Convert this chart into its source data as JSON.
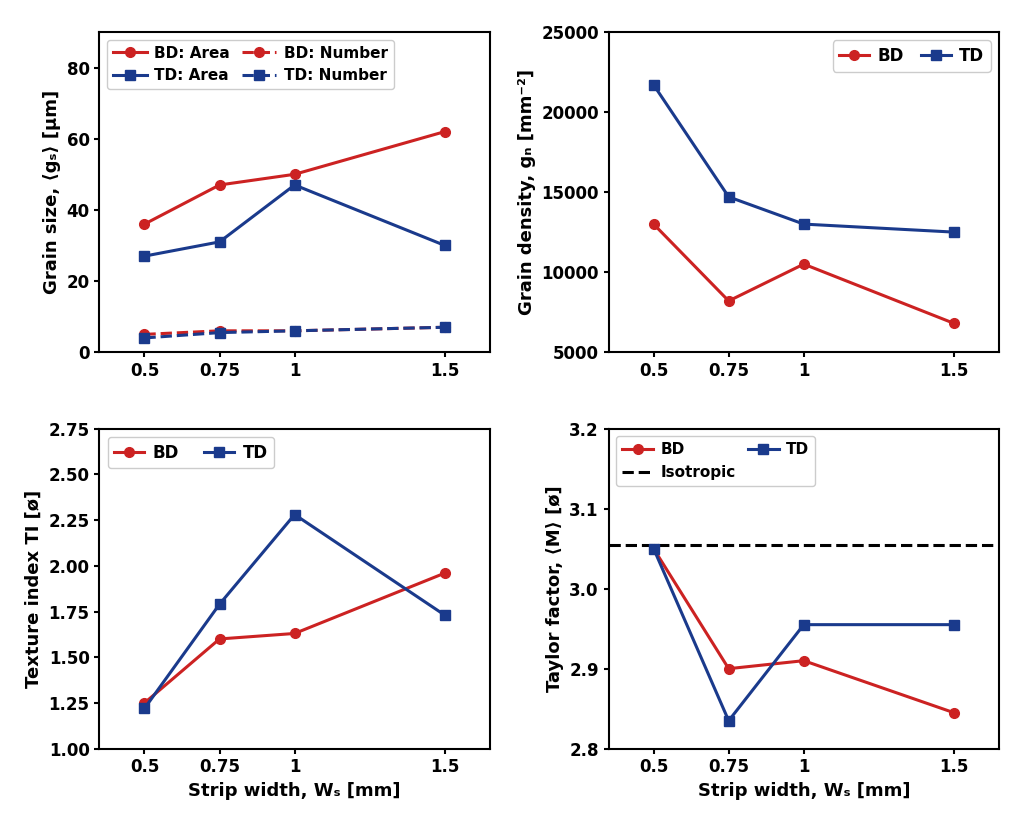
{
  "x": [
    0.5,
    0.75,
    1.0,
    1.5
  ],
  "grain_size": {
    "BD_area": [
      36,
      47,
      50,
      62
    ],
    "TD_area": [
      27,
      31,
      47,
      30
    ],
    "BD_number": [
      5,
      6,
      6,
      7
    ],
    "TD_number": [
      4,
      5.5,
      6,
      7
    ],
    "ylabel": "Grain size, ⟨gₛ⟩ [μm]",
    "ylim": [
      0,
      90
    ],
    "yticks": [
      0,
      20,
      40,
      60,
      80
    ]
  },
  "grain_density": {
    "BD": [
      13000,
      8200,
      10500,
      6800
    ],
    "TD": [
      21700,
      14700,
      13000,
      12500
    ],
    "ylabel": "Grain density, gₙ [mm⁻²]",
    "ylim": [
      5000,
      25000
    ],
    "yticks": [
      5000,
      10000,
      15000,
      20000,
      25000
    ]
  },
  "texture_index": {
    "BD": [
      1.25,
      1.6,
      1.63,
      1.96
    ],
    "TD": [
      1.22,
      1.79,
      2.28,
      1.73
    ],
    "ylabel": "Texture index TI [ø]",
    "ylim": [
      1.0,
      2.75
    ],
    "yticks": [
      1.0,
      1.25,
      1.5,
      1.75,
      2.0,
      2.25,
      2.5,
      2.75
    ]
  },
  "taylor_factor": {
    "BD": [
      3.05,
      2.9,
      2.91,
      2.845
    ],
    "TD": [
      3.05,
      2.835,
      2.955,
      2.955
    ],
    "isotropic": 3.055,
    "ylabel": "Taylor factor, ⟨M⟩ [ø]",
    "ylim": [
      2.8,
      3.2
    ],
    "yticks": [
      2.8,
      2.9,
      3.0,
      3.1,
      3.2
    ]
  },
  "xlabel": "Strip width, Wₛ [mm]",
  "xticks": [
    0.5,
    0.75,
    1.0,
    1.5
  ],
  "xticklabels": [
    "0.5",
    "0.75",
    "1",
    "1.5"
  ],
  "color_red": "#cc2222",
  "color_blue": "#1a3a8c",
  "bg_color": "#ffffff",
  "fig_bg": "#ffffff",
  "linewidth": 2.2,
  "markersize": 7,
  "label_fontsize": 13,
  "tick_fontsize": 12,
  "legend_fontsize": 12
}
